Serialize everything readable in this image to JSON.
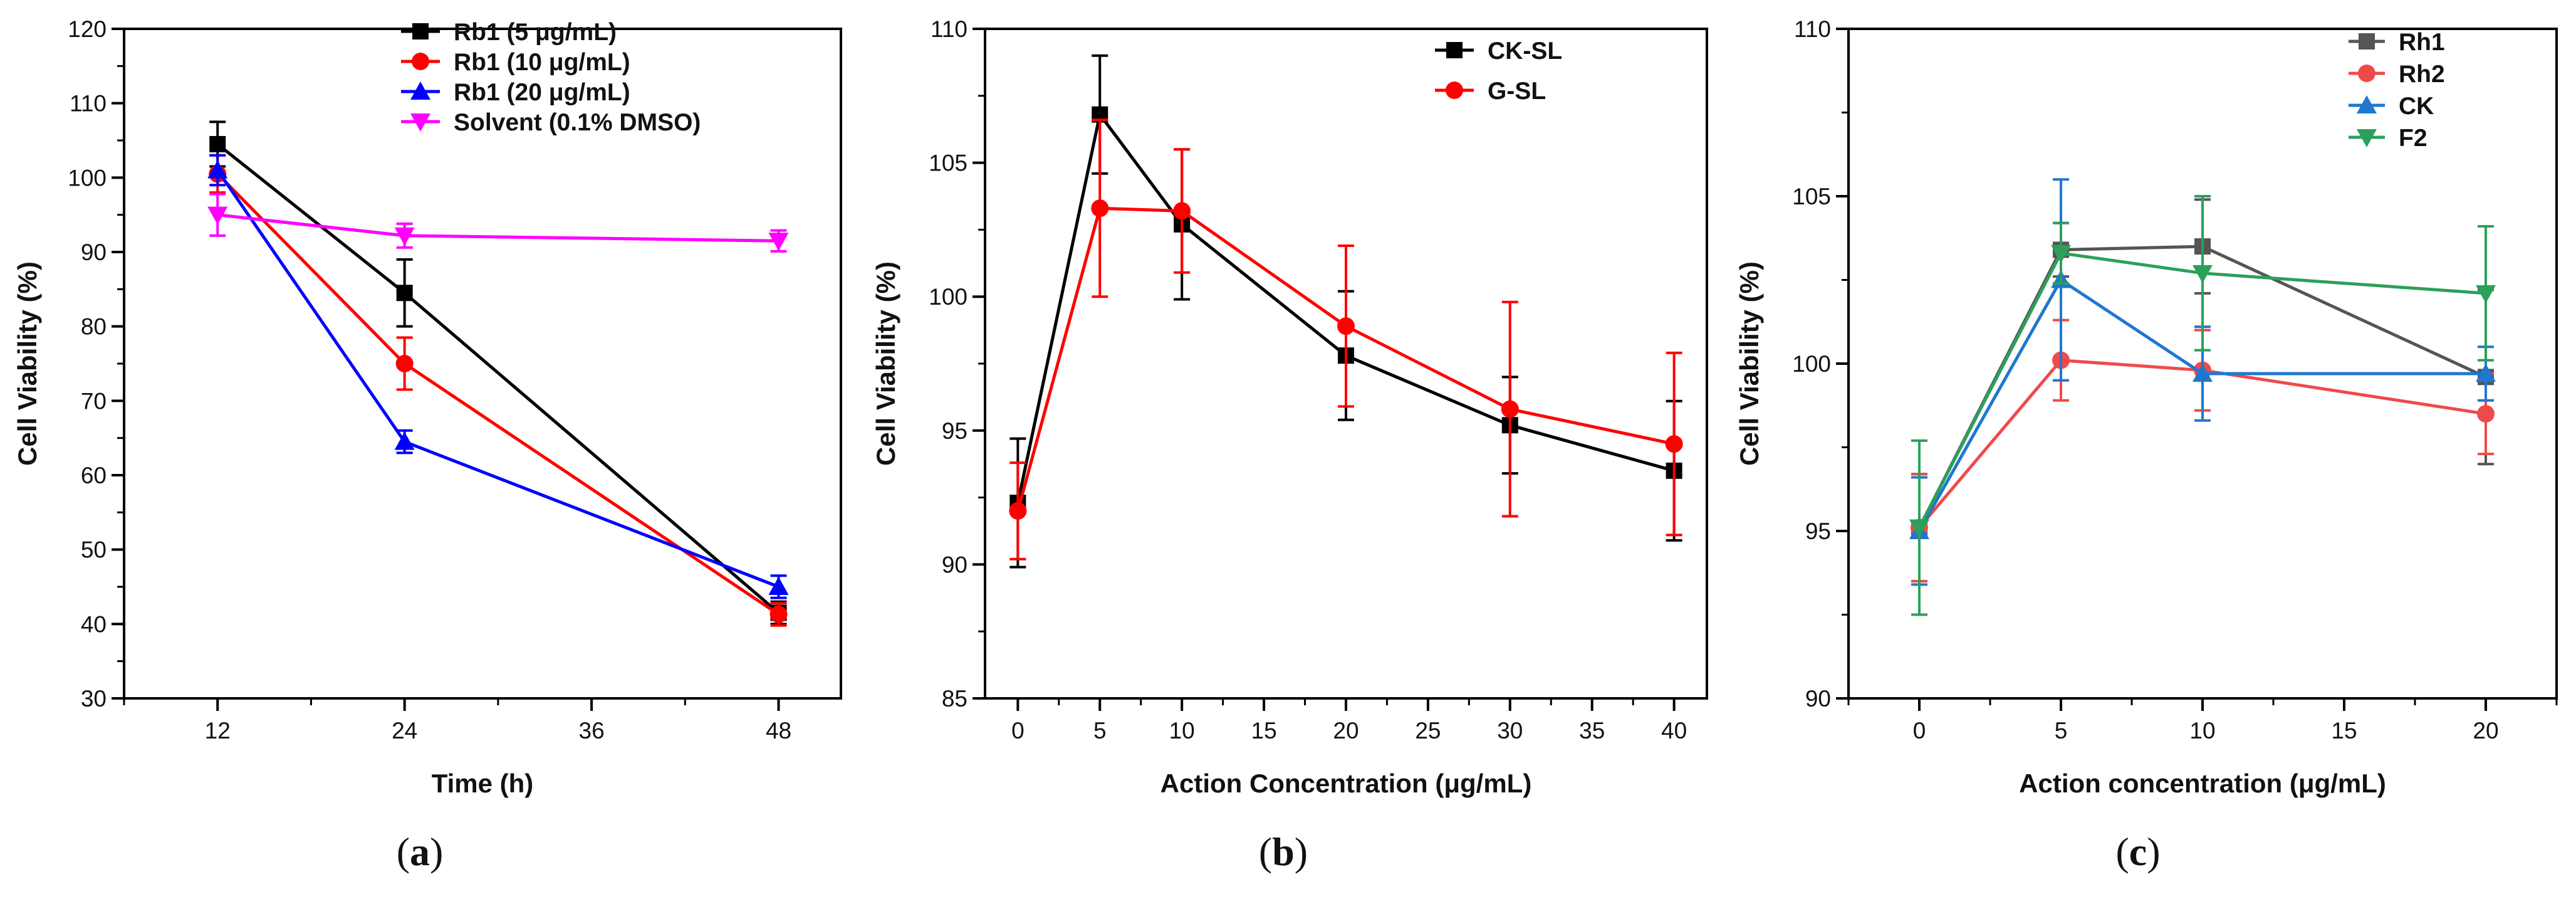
{
  "chart_data": [
    {
      "id": "a",
      "type": "line",
      "caption": "(a)",
      "caption_parts": {
        "open": "(",
        "letter": "a",
        "close": ")"
      },
      "title": "",
      "xlabel": "Time (h)",
      "ylabel": "Cell Viability (%)",
      "xlim": [
        6,
        52
      ],
      "ylim": [
        30,
        120
      ],
      "xticks": [
        12,
        24,
        36,
        48
      ],
      "yticks": [
        30,
        40,
        50,
        60,
        70,
        80,
        90,
        100,
        110,
        120
      ],
      "x_minor_step": 6,
      "y_minor_step": 5,
      "legend_position": "top-right",
      "series": [
        {
          "name": "Rb1 (5 μg/mL)",
          "color": "#000000",
          "marker": "square",
          "x": [
            12,
            24,
            48
          ],
          "values": [
            104.5,
            84.5,
            41.5
          ],
          "errors": [
            3,
            4.5,
            1.5
          ]
        },
        {
          "name": "Rb1 (10 μg/mL)",
          "color": "#ff0000",
          "marker": "circle",
          "x": [
            12,
            24,
            48
          ],
          "values": [
            100.5,
            75,
            41.3
          ],
          "errors": [
            2.5,
            3.5,
            1.5
          ]
        },
        {
          "name": "Rb1 (20 μg/mL)",
          "color": "#0000ff",
          "marker": "triangle-up",
          "x": [
            12,
            24,
            48
          ],
          "values": [
            101,
            64.5,
            45
          ],
          "errors": [
            2,
            1.5,
            1.5
          ]
        },
        {
          "name": "Solvent (0.1% DMSO)",
          "color": "#ff00ff",
          "marker": "triangle-down",
          "x": [
            12,
            24,
            48
          ],
          "values": [
            95,
            92.2,
            91.5
          ],
          "errors": [
            2.8,
            1.6,
            1.4
          ]
        }
      ]
    },
    {
      "id": "b",
      "type": "line",
      "caption": "(b)",
      "caption_parts": {
        "open": "(",
        "letter": "b",
        "close": ")"
      },
      "title": "",
      "xlabel": "Action Concentration (μg/mL)",
      "ylabel": "Cell Viability (%)",
      "xlim": [
        -2,
        42
      ],
      "ylim": [
        85,
        110
      ],
      "xticks": [
        0,
        5,
        10,
        15,
        20,
        25,
        30,
        35,
        40
      ],
      "yticks": [
        85,
        90,
        95,
        100,
        105,
        110
      ],
      "x_minor_step": 2.5,
      "y_minor_step": 2.5,
      "legend_position": "top-right",
      "series": [
        {
          "name": "CK-SL",
          "color": "#000000",
          "marker": "square",
          "x": [
            0,
            5,
            10,
            20,
            30,
            40
          ],
          "values": [
            92.3,
            106.8,
            102.7,
            97.8,
            95.2,
            93.5
          ],
          "errors": [
            2.4,
            2.2,
            2.8,
            2.4,
            1.8,
            2.6
          ]
        },
        {
          "name": "G-SL",
          "color": "#ff0000",
          "marker": "circle",
          "x": [
            0,
            5,
            10,
            20,
            30,
            40
          ],
          "values": [
            92,
            103.3,
            103.2,
            98.9,
            95.8,
            94.5
          ],
          "errors": [
            1.8,
            3.3,
            2.3,
            3,
            4,
            3.4
          ]
        }
      ]
    },
    {
      "id": "c",
      "type": "line",
      "caption": "(c)",
      "caption_parts": {
        "open": "(",
        "letter": "c",
        "close": ")"
      },
      "title": "",
      "xlabel": "Action concentration (μg/mL)",
      "ylabel": "Cell Viability (%)",
      "xlim": [
        -2.5,
        22.5
      ],
      "ylim": [
        90,
        110
      ],
      "xticks": [
        0,
        5,
        10,
        15,
        20
      ],
      "yticks": [
        90,
        95,
        100,
        105,
        110
      ],
      "x_minor_step": 2.5,
      "y_minor_step": 2.5,
      "legend_position": "top-right",
      "series": [
        {
          "name": "Rh1",
          "color": "#555555",
          "marker": "square",
          "x": [
            0,
            5,
            10,
            20
          ],
          "values": [
            95.1,
            103.4,
            103.5,
            99.6
          ],
          "errors": [
            1.6,
            0.8,
            1.4,
            2.6
          ]
        },
        {
          "name": "Rh2",
          "color": "#ef4a4a",
          "marker": "circle",
          "x": [
            0,
            5,
            10,
            20
          ],
          "values": [
            95.1,
            100.1,
            99.8,
            98.5
          ],
          "errors": [
            1.6,
            1.2,
            1.2,
            1.2
          ]
        },
        {
          "name": "CK",
          "color": "#1f77d0",
          "marker": "triangle-up",
          "x": [
            0,
            5,
            10,
            20
          ],
          "values": [
            95,
            102.5,
            99.7,
            99.7
          ],
          "errors": [
            1.6,
            3,
            1.4,
            0.8
          ]
        },
        {
          "name": "F2",
          "color": "#2ca05a",
          "marker": "triangle-down",
          "x": [
            0,
            5,
            10,
            20
          ],
          "values": [
            95.1,
            103.3,
            102.7,
            102.1
          ],
          "errors": [
            2.6,
            0.9,
            2.3,
            2
          ]
        }
      ]
    }
  ]
}
